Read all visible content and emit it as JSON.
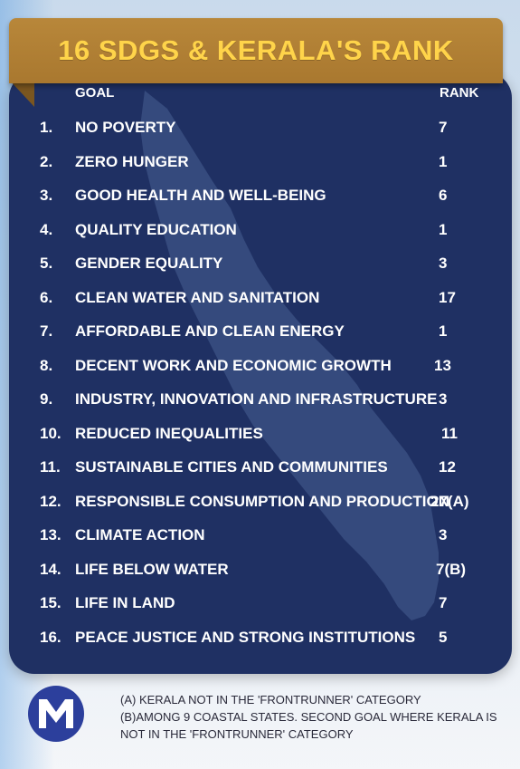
{
  "title": "16 SDGS & KERALA'S RANK",
  "header": {
    "goal": "GOAL",
    "rank": "RANK"
  },
  "rows": [
    {
      "num": "1.",
      "goal": "NO POVERTY",
      "rank": "7"
    },
    {
      "num": "2.",
      "goal": "ZERO HUNGER",
      "rank": "1"
    },
    {
      "num": "3.",
      "goal": "GOOD HEALTH AND WELL-BEING",
      "rank": "6"
    },
    {
      "num": "4.",
      "goal": "QUALITY EDUCATION",
      "rank": "1"
    },
    {
      "num": "5.",
      "goal": "GENDER EQUALITY",
      "rank": "3"
    },
    {
      "num": "6.",
      "goal": "CLEAN WATER AND SANITATION",
      "rank": "17"
    },
    {
      "num": "7.",
      "goal": "AFFORDABLE AND CLEAN ENERGY",
      "rank": "1"
    },
    {
      "num": "8.",
      "goal": "DECENT WORK AND ECONOMIC GROWTH",
      "rank": "13"
    },
    {
      "num": "9.",
      "goal": "INDUSTRY, INNOVATION AND INFRASTRUCTURE",
      "rank": "3"
    },
    {
      "num": "10.",
      "goal": "REDUCED INEQUALITIES",
      "rank": "11"
    },
    {
      "num": "11.",
      "goal": "SUSTAINABLE CITIES AND COMMUNITIES",
      "rank": "12"
    },
    {
      "num": "12.",
      "goal": "RESPONSIBLE CONSUMPTION AND PRODUCTION",
      "rank": "27(A)"
    },
    {
      "num": "13.",
      "goal": "CLIMATE ACTION",
      "rank": "3"
    },
    {
      "num": "14.",
      "goal": "LIFE BELOW WATER",
      "rank": "7(B)"
    },
    {
      "num": "15.",
      "goal": "LIFE IN LAND",
      "rank": "7"
    },
    {
      "num": "16.",
      "goal": "PEACE JUSTICE AND STRONG INSTITUTIONS",
      "rank": "5"
    }
  ],
  "notes": {
    "a": "(A) KERALA NOT IN THE 'FRONTRUNNER' CATEGORY",
    "b": "(B)AMONG 9 COASTAL STATES. SECOND GOAL WHERE KERALA IS NOT IN THE 'FRONTRUNNER' CATEGORY"
  },
  "logo": {
    "icon": "m-logo-icon",
    "letter": "M"
  },
  "colors": {
    "card": "#1f3063",
    "banner": "#b8873a",
    "title": "#ffd44a"
  }
}
